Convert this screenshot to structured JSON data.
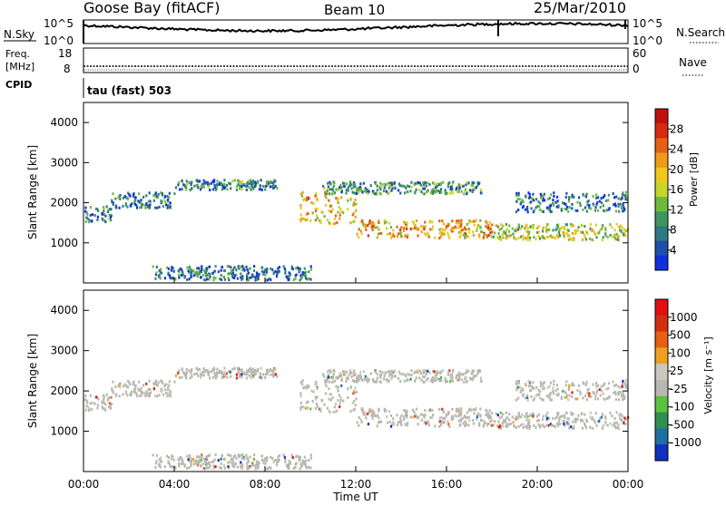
{
  "header": {
    "station": "Goose Bay (fitACF)",
    "beam": "Beam 10",
    "date": "25/Mar/2010"
  },
  "noise_panel": {
    "left_label": "N.Sky",
    "right_label": "N.Search",
    "left_ticks": [
      "10^5",
      "10^0"
    ],
    "right_ticks": [
      "10^5",
      "10^0"
    ]
  },
  "freq_panel": {
    "left_label_1": "Freq.",
    "left_label_2": "[MHz]",
    "right_label": "Nave",
    "left_ticks": [
      "18",
      "8"
    ],
    "right_ticks": [
      "60",
      "0"
    ]
  },
  "cpid_panel": {
    "label": "CPID",
    "program": "tau (fast) 503"
  },
  "chart_data": [
    {
      "type": "heatmap",
      "name": "power",
      "ylabel": "Slant Range [km]",
      "ylim": [
        0,
        4500
      ],
      "yticks": [
        "1000",
        "2000",
        "3000",
        "4000"
      ],
      "xlim": [
        0,
        24
      ],
      "colorbar_label": "Power [dB]",
      "colorbar_ticks": [
        "4",
        "8",
        "12",
        "16",
        "20",
        "24",
        "28"
      ],
      "colorbar_range": [
        0,
        30
      ],
      "colors": [
        "#1030e0",
        "#1f4fa8",
        "#2f7a80",
        "#3f9560",
        "#6fb93f",
        "#c6d62a",
        "#f0c81c",
        "#f09a18",
        "#e86014",
        "#d82a10",
        "#c01010"
      ]
    },
    {
      "type": "heatmap",
      "name": "velocity",
      "ylabel": "Slant Range [km]",
      "ylim": [
        0,
        4500
      ],
      "yticks": [
        "1000",
        "2000",
        "3000",
        "4000"
      ],
      "xlim": [
        0,
        24
      ],
      "colorbar_label": "Velocity [m s⁻¹]",
      "colorbar_ticks": [
        "1000",
        "500",
        "100",
        "25",
        "-25",
        "-100",
        "-500",
        "-1000"
      ],
      "colors": [
        "#1030c0",
        "#1f6fa0",
        "#2e8f50",
        "#5dc040",
        "#b8b8b0",
        "#c8c8c0",
        "#f0a020",
        "#e86010",
        "#d03010",
        "#e01010"
      ]
    }
  ],
  "x_axis": {
    "ticks": [
      "00:00",
      "04:00",
      "08:00",
      "12:00",
      "16:00",
      "20:00",
      "00:00"
    ],
    "label": "Time UT"
  },
  "scatter_bands": [
    {
      "t0": 0.0,
      "t1": 1.2,
      "r0": 1550,
      "r1": 1950,
      "level": 0.25
    },
    {
      "t0": 1.2,
      "t1": 4.0,
      "r0": 1900,
      "r1": 2300,
      "level": 0.22
    },
    {
      "t0": 4.0,
      "t1": 8.5,
      "r0": 2350,
      "r1": 2600,
      "level": 0.28
    },
    {
      "t0": 9.5,
      "t1": 12.0,
      "r0": 1500,
      "r1": 2300,
      "level": 0.6
    },
    {
      "t0": 12.0,
      "t1": 18.0,
      "r0": 1150,
      "r1": 1600,
      "level": 0.62
    },
    {
      "t0": 18.0,
      "t1": 24.0,
      "r0": 1100,
      "r1": 1500,
      "level": 0.48
    },
    {
      "t0": 10.5,
      "t1": 17.5,
      "r0": 2250,
      "r1": 2550,
      "level": 0.3
    },
    {
      "t0": 3.0,
      "t1": 10.0,
      "r0": 100,
      "r1": 450,
      "level": 0.22
    },
    {
      "t0": 19.0,
      "t1": 24.0,
      "r0": 1800,
      "r1": 2300,
      "level": 0.2
    }
  ]
}
